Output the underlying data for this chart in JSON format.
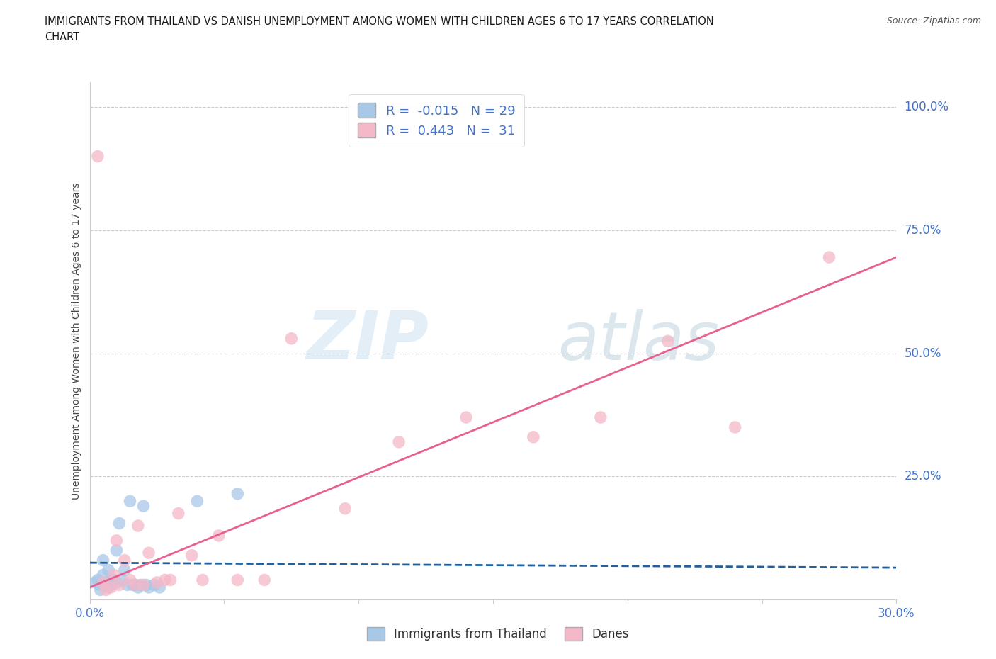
{
  "title_line1": "IMMIGRANTS FROM THAILAND VS DANISH UNEMPLOYMENT AMONG WOMEN WITH CHILDREN AGES 6 TO 17 YEARS CORRELATION",
  "title_line2": "CHART",
  "source": "Source: ZipAtlas.com",
  "ylabel": "Unemployment Among Women with Children Ages 6 to 17 years",
  "xlim": [
    0.0,
    0.3
  ],
  "ylim": [
    0.0,
    1.05
  ],
  "xticks": [
    0.0,
    0.05,
    0.1,
    0.15,
    0.2,
    0.25,
    0.3
  ],
  "xtick_labels": [
    "0.0%",
    "",
    "",
    "",
    "",
    "",
    "30.0%"
  ],
  "ytick_labels_right": [
    "25.0%",
    "50.0%",
    "75.0%",
    "100.0%"
  ],
  "ytick_vals_right": [
    0.25,
    0.5,
    0.75,
    1.0
  ],
  "background_color": "#ffffff",
  "watermark_zip": "ZIP",
  "watermark_atlas": "atlas",
  "blue_color": "#a8c8e8",
  "pink_color": "#f4b8c8",
  "blue_line_color": "#2060a0",
  "pink_line_color": "#e86090",
  "R_blue": -0.015,
  "N_blue": 29,
  "R_pink": 0.443,
  "N_pink": 31,
  "legend_label_blue": "Immigrants from Thailand",
  "legend_label_pink": "Danes",
  "blue_x": [
    0.002,
    0.003,
    0.004,
    0.004,
    0.005,
    0.005,
    0.006,
    0.007,
    0.007,
    0.008,
    0.009,
    0.01,
    0.01,
    0.011,
    0.012,
    0.013,
    0.014,
    0.015,
    0.016,
    0.017,
    0.018,
    0.019,
    0.02,
    0.021,
    0.022,
    0.024,
    0.026,
    0.04,
    0.055
  ],
  "blue_y": [
    0.035,
    0.04,
    0.02,
    0.03,
    0.05,
    0.08,
    0.035,
    0.025,
    0.06,
    0.03,
    0.04,
    0.035,
    0.1,
    0.155,
    0.04,
    0.06,
    0.03,
    0.2,
    0.03,
    0.03,
    0.025,
    0.03,
    0.19,
    0.03,
    0.025,
    0.03,
    0.025,
    0.2,
    0.215
  ],
  "pink_x": [
    0.003,
    0.005,
    0.006,
    0.008,
    0.009,
    0.01,
    0.011,
    0.013,
    0.015,
    0.017,
    0.018,
    0.02,
    0.022,
    0.025,
    0.028,
    0.03,
    0.033,
    0.038,
    0.042,
    0.048,
    0.055,
    0.065,
    0.075,
    0.095,
    0.115,
    0.14,
    0.165,
    0.19,
    0.215,
    0.24,
    0.275
  ],
  "pink_y": [
    0.9,
    0.035,
    0.02,
    0.025,
    0.05,
    0.12,
    0.03,
    0.08,
    0.04,
    0.03,
    0.15,
    0.03,
    0.095,
    0.035,
    0.04,
    0.04,
    0.175,
    0.09,
    0.04,
    0.13,
    0.04,
    0.04,
    0.53,
    0.185,
    0.32,
    0.37,
    0.33,
    0.37,
    0.525,
    0.35,
    0.695
  ],
  "blue_trend_x": [
    0.0,
    0.3
  ],
  "blue_trend_y": [
    0.075,
    0.065
  ],
  "pink_trend_x": [
    0.0,
    0.3
  ],
  "pink_trend_y": [
    0.025,
    0.695
  ]
}
